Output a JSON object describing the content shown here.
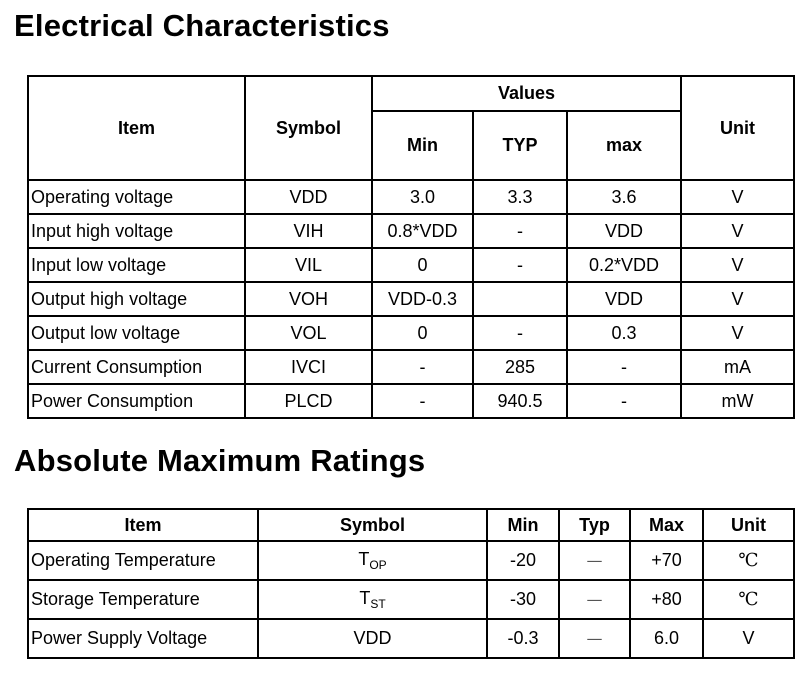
{
  "electrical": {
    "title": "Electrical Characteristics",
    "headers": {
      "item": "Item",
      "symbol": "Symbol",
      "values": "Values",
      "min": "Min",
      "typ": "TYP",
      "max": "max",
      "unit": "Unit"
    },
    "rows": [
      {
        "item": "Operating voltage",
        "symbol": "VDD",
        "min": "3.0",
        "typ": "3.3",
        "max": "3.6",
        "unit": "V"
      },
      {
        "item": "Input high voltage",
        "symbol": "VIH",
        "min": "0.8*VDD",
        "typ": "-",
        "max": "VDD",
        "unit": "V"
      },
      {
        "item": "Input low voltage",
        "symbol": "VIL",
        "min": "0",
        "typ": "-",
        "max": "0.2*VDD",
        "unit": "V"
      },
      {
        "item": "Output high voltage",
        "symbol": "VOH",
        "min": "VDD-0.3",
        "typ": "",
        "max": "VDD",
        "unit": "V"
      },
      {
        "item": "Output low voltage",
        "symbol": "VOL",
        "min": "0",
        "typ": "-",
        "max": "0.3",
        "unit": "V"
      },
      {
        "item": "Current Consumption",
        "symbol": "IVCI",
        "min": "-",
        "typ": "285",
        "max": "-",
        "unit": "mA"
      },
      {
        "item": "Power Consumption",
        "symbol": "PLCD",
        "min": "-",
        "typ": "940.5",
        "max": "-",
        "unit": "mW"
      }
    ]
  },
  "absolute": {
    "title": "Absolute Maximum Ratings",
    "headers": {
      "item": "Item",
      "symbol": "Symbol",
      "min": "Min",
      "typ": "Typ",
      "max": "Max",
      "unit": "Unit"
    },
    "rows": [
      {
        "item": "Operating Temperature",
        "symbol_main": "T",
        "symbol_sub": "OP",
        "min": "-20",
        "typ": "—",
        "max": "+70",
        "unit": "℃"
      },
      {
        "item": "Storage Temperature",
        "symbol_main": "T",
        "symbol_sub": "ST",
        "min": "-30",
        "typ": "—",
        "max": "+80",
        "unit": "℃"
      },
      {
        "item": "Power Supply Voltage",
        "symbol_main": "VDD",
        "symbol_sub": "",
        "min": "-0.3",
        "typ": "—",
        "max": "6.0",
        "unit": "V"
      }
    ]
  }
}
